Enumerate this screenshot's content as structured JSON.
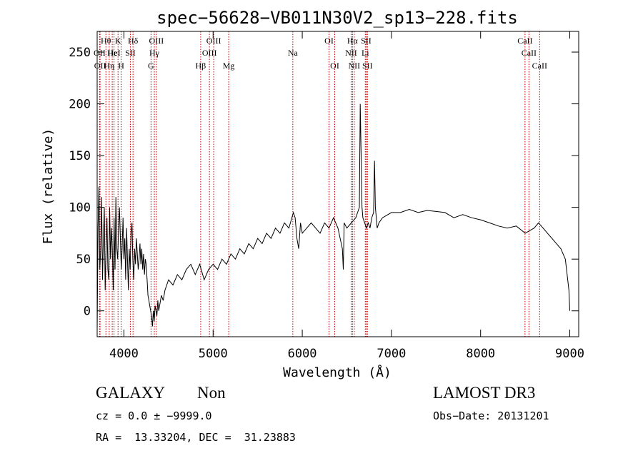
{
  "chart_data": {
    "type": "line",
    "title": "spec−56628−VB011N30V2_sp13−228.fits",
    "xlabel": "Wavelength (Å)",
    "ylabel": "Flux (relative)",
    "xlim": [
      3700,
      9100
    ],
    "ylim": [
      -25,
      270
    ],
    "xticks": [
      4000,
      5000,
      6000,
      7000,
      8000,
      9000
    ],
    "yticks": [
      0,
      50,
      100,
      150,
      200,
      250
    ],
    "grid": false,
    "line_color": "#000000",
    "marker_color": "#cc0000",
    "series": [
      {
        "x": [
          3700,
          3710,
          3720,
          3730,
          3740,
          3750,
          3760,
          3770,
          3780,
          3790,
          3800,
          3810,
          3820,
          3830,
          3840,
          3850,
          3860,
          3870,
          3880,
          3890,
          3900,
          3910,
          3920,
          3930,
          3940,
          3950,
          3960,
          3970,
          3980,
          3990,
          4000,
          4010,
          4020,
          4030,
          4040,
          4050,
          4060,
          4070,
          4080,
          4090,
          4100,
          4110,
          4120,
          4130,
          4140,
          4150,
          4160,
          4170,
          4180,
          4190,
          4200,
          4210,
          4220,
          4230,
          4240,
          4250,
          4260,
          4270,
          4280,
          4290,
          4300,
          4310,
          4320,
          4330,
          4340,
          4350,
          4360,
          4370,
          4380,
          4390,
          4400,
          4420,
          4440,
          4460,
          4480,
          4500,
          4550,
          4600,
          4650,
          4700,
          4750,
          4800,
          4850,
          4900,
          4950,
          5000,
          5050,
          5100,
          5150,
          5200,
          5250,
          5300,
          5350,
          5400,
          5450,
          5500,
          5550,
          5600,
          5650,
          5700,
          5750,
          5800,
          5850,
          5900,
          5920,
          5940,
          5960,
          5980,
          6000,
          6050,
          6100,
          6150,
          6200,
          6250,
          6300,
          6350,
          6400,
          6450,
          6460,
          6470,
          6500,
          6550,
          6600,
          6640,
          6650,
          6660,
          6665,
          6670,
          6680,
          6700,
          6720,
          6740,
          6760,
          6780,
          6800,
          6810,
          6820,
          6830,
          6840,
          6860,
          6900,
          7000,
          7100,
          7200,
          7300,
          7400,
          7500,
          7600,
          7700,
          7800,
          7900,
          8000,
          8100,
          8200,
          8300,
          8400,
          8500,
          8600,
          8650,
          8700,
          8750,
          8800,
          8850,
          8900,
          8950,
          8990,
          9000
        ],
        "y": [
          -20,
          80,
          120,
          40,
          60,
          110,
          30,
          70,
          100,
          20,
          60,
          90,
          40,
          30,
          100,
          50,
          80,
          60,
          20,
          90,
          40,
          110,
          60,
          50,
          80,
          100,
          70,
          40,
          60,
          90,
          50,
          70,
          30,
          80,
          50,
          20,
          60,
          40,
          75,
          85,
          50,
          30,
          60,
          45,
          70,
          55,
          40,
          50,
          65,
          45,
          60,
          40,
          55,
          35,
          50,
          45,
          30,
          15,
          10,
          5,
          0,
          -5,
          -15,
          0,
          -10,
          5,
          0,
          -5,
          10,
          0,
          5,
          15,
          10,
          20,
          25,
          30,
          25,
          35,
          30,
          40,
          45,
          35,
          45,
          30,
          40,
          45,
          40,
          50,
          45,
          55,
          50,
          60,
          55,
          65,
          60,
          70,
          65,
          75,
          70,
          80,
          75,
          85,
          80,
          95,
          90,
          70,
          60,
          85,
          75,
          80,
          85,
          80,
          75,
          85,
          80,
          90,
          80,
          60,
          40,
          85,
          80,
          85,
          90,
          100,
          200,
          150,
          120,
          100,
          90,
          85,
          80,
          85,
          80,
          90,
          95,
          145,
          100,
          90,
          80,
          85,
          90,
          95,
          95,
          98,
          95,
          97,
          96,
          95,
          90,
          93,
          90,
          88,
          85,
          82,
          80,
          82,
          75,
          80,
          85,
          80,
          75,
          70,
          65,
          60,
          50,
          20,
          0
        ]
      }
    ],
    "line_markers": [
      {
        "x": 3727,
        "label": "OII",
        "row": 2
      },
      {
        "x": 3733,
        "label": "OII",
        "row": 3
      },
      {
        "x": 3798,
        "label": "Hθ",
        "row": 1
      },
      {
        "x": 3835,
        "label": "Hη",
        "row": 3
      },
      {
        "x": 3869,
        "label": "He",
        "row": 2
      },
      {
        "x": 3889,
        "label": "HeI",
        "row": 2
      },
      {
        "x": 3934,
        "label": "K",
        "row": 1
      },
      {
        "x": 3969,
        "label": "H",
        "row": 3
      },
      {
        "x": 4072,
        "label": "SII",
        "row": 2
      },
      {
        "x": 4102,
        "label": "Hδ",
        "row": 1
      },
      {
        "x": 4304,
        "label": "G",
        "row": 3
      },
      {
        "x": 4341,
        "label": "Hγ",
        "row": 2
      },
      {
        "x": 4364,
        "label": "OIII",
        "row": 1
      },
      {
        "x": 4861,
        "label": "Hβ",
        "row": 3
      },
      {
        "x": 4959,
        "label": "OIII",
        "row": 2
      },
      {
        "x": 5007,
        "label": "OIII",
        "row": 1
      },
      {
        "x": 5175,
        "label": "Mg",
        "row": 3
      },
      {
        "x": 5894,
        "label": "Na",
        "row": 2
      },
      {
        "x": 6300,
        "label": "OI",
        "row": 1
      },
      {
        "x": 6364,
        "label": "OI",
        "row": 3
      },
      {
        "x": 6548,
        "label": "NII",
        "row": 2
      },
      {
        "x": 6563,
        "label": "Hα",
        "row": 1
      },
      {
        "x": 6583,
        "label": "NII",
        "row": 3
      },
      {
        "x": 6707,
        "label": "Li",
        "row": 2
      },
      {
        "x": 6716,
        "label": "SII",
        "row": 1
      },
      {
        "x": 6731,
        "label": "SII",
        "row": 3
      },
      {
        "x": 8498,
        "label": "CaII",
        "row": 1
      },
      {
        "x": 8542,
        "label": "CaII",
        "row": 2
      },
      {
        "x": 8662,
        "label": "CaII",
        "row": 3
      }
    ]
  },
  "footer": {
    "object_class": "GALAXY",
    "subclass": "Non",
    "survey": "LAMOST DR3",
    "cz": "cz = 0.0 ± −9999.0",
    "obs_date": "Obs−Date: 20131201",
    "radec": "RA =  13.33204, DEC =  31.23883"
  }
}
